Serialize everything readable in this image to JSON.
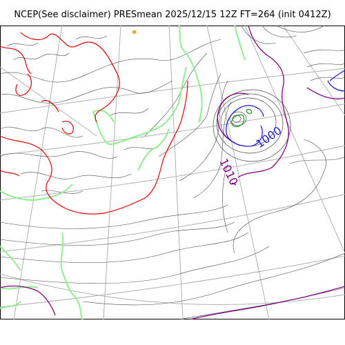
{
  "title": "NCEP(See disclaimer) PRESmean 2025/12/15 12Z FT=264 (init 0412Z)",
  "contour_labels": [
    {
      "text": "1000",
      "color": "#1f1fd0"
    },
    {
      "text": "1010",
      "color": "#800080"
    }
  ],
  "colors": {
    "background": "#ffffff",
    "isobar_thin": "#333333",
    "contour_red": "#e00000",
    "contour_blue": "#1f1fd0",
    "contour_purple": "#800080",
    "contour_green": "#2a9d2a",
    "coastline": "#90ee90",
    "graticule": "#b0b0b0",
    "accent_orange": "#f5a623"
  }
}
